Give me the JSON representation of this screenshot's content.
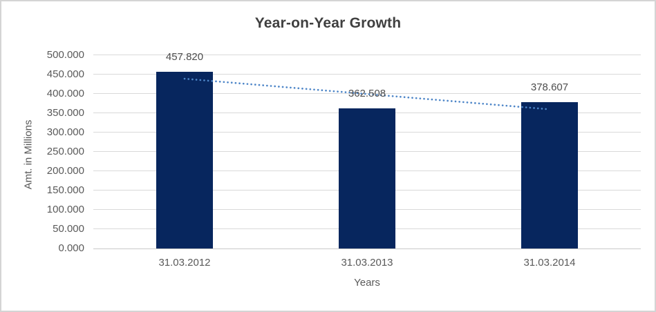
{
  "chart_data": {
    "type": "bar",
    "title": "Year-on-Year Growth",
    "xlabel": "Years",
    "ylabel": "Amt. in Millions",
    "categories": [
      "31.03.2012",
      "31.03.2013",
      "31.03.2014"
    ],
    "values": [
      457.82,
      362.508,
      378.607
    ],
    "data_labels": [
      "457.820",
      "362.508",
      "378.607"
    ],
    "ylim": [
      0,
      500
    ],
    "ytick_step": 50,
    "ytick_labels": [
      "0.000",
      "50.000",
      "100.000",
      "150.000",
      "200.000",
      "250.000",
      "300.000",
      "350.000",
      "400.000",
      "450.000",
      "500.000"
    ],
    "grid": true,
    "legend": false,
    "trendline": {
      "type": "linear",
      "style": "dotted",
      "start_value": 439.2,
      "end_value": 360.0
    },
    "colors": {
      "bar": "#07265e",
      "trendline": "#4e86c8",
      "gridline": "#d9d9d9",
      "axis_line": "#c9c9c9",
      "tick_text": "#595959",
      "data_label_text": "#4d4d4d",
      "title_text": "#3f3f3f"
    }
  }
}
